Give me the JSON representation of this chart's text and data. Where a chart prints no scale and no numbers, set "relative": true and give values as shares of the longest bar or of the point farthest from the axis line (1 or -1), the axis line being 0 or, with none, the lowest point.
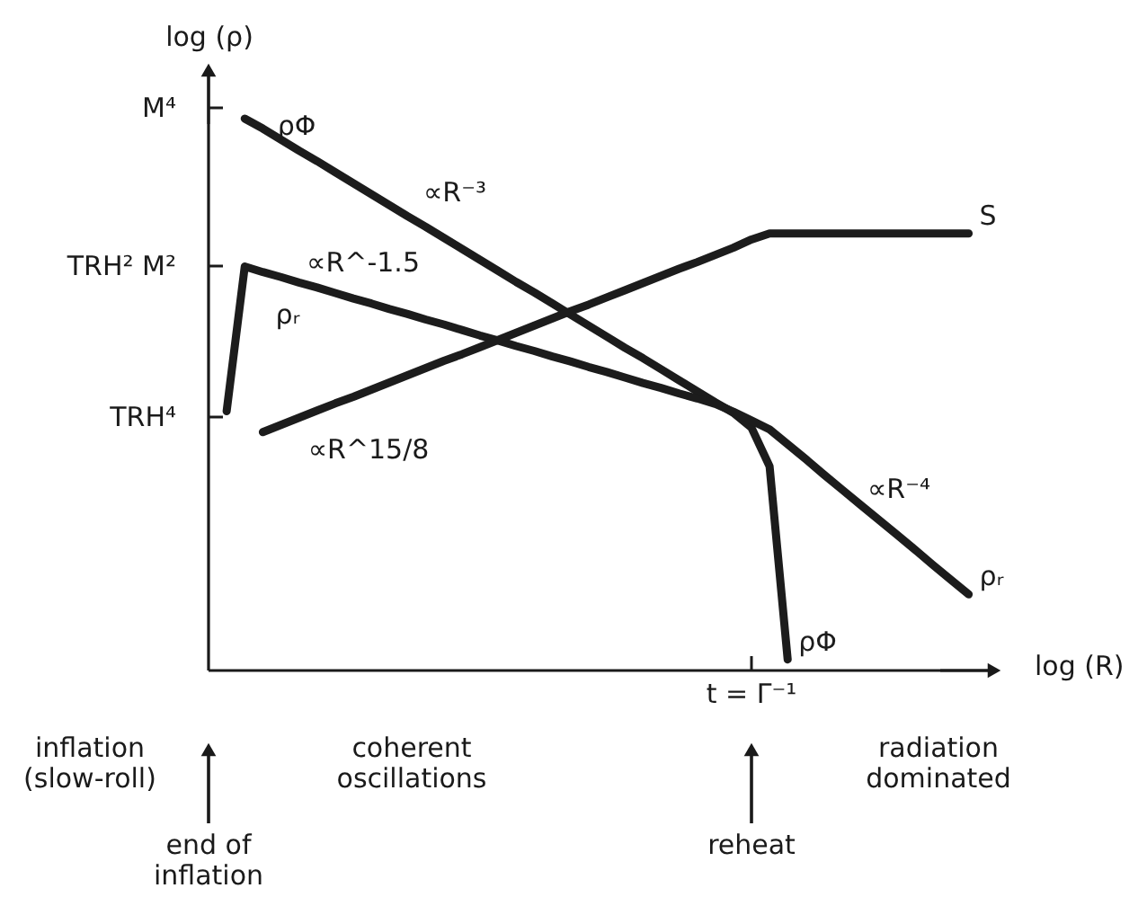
{
  "chart_data": {
    "type": "line",
    "relative": true,
    "xlabel": "log (R)",
    "ylabel": "log (ρ)",
    "categories": [
      null,
      null,
      null,
      null,
      null,
      null,
      null,
      null,
      null,
      null,
      null,
      null,
      null,
      null,
      null,
      null,
      null,
      null,
      null,
      null,
      null,
      null,
      null,
      null,
      null,
      null,
      null,
      null,
      null,
      null,
      null,
      null,
      null,
      null,
      null,
      null,
      null,
      null,
      null,
      null,
      null,
      null
    ],
    "series": [
      {
        "name": "ρΦ",
        "color": "#1c1c1c",
        "values": [
          null,
          1.0,
          0.982,
          0.962,
          0.942,
          0.923,
          0.903,
          0.883,
          0.863,
          0.843,
          0.823,
          0.804,
          0.784,
          0.764,
          0.744,
          0.724,
          0.704,
          0.685,
          0.665,
          0.645,
          0.625,
          0.605,
          0.585,
          0.566,
          0.546,
          0.526,
          0.506,
          0.486,
          0.467,
          0.44,
          0.37,
          0.02,
          null,
          null,
          null,
          null,
          null,
          null,
          null,
          null,
          null,
          null
        ]
      },
      {
        "name": "ρᵣ",
        "color": "#1c1c1c",
        "values": [
          0.47,
          0.732,
          0.722,
          0.713,
          0.703,
          0.694,
          0.684,
          0.674,
          0.665,
          0.655,
          0.646,
          0.636,
          0.627,
          0.617,
          0.607,
          0.598,
          0.588,
          0.579,
          0.569,
          0.56,
          0.55,
          0.541,
          0.531,
          0.521,
          0.512,
          0.502,
          0.493,
          0.483,
          0.469,
          0.453,
          0.437,
          0.41,
          0.383,
          0.355,
          0.328,
          0.301,
          0.274,
          0.247,
          0.22,
          0.192,
          0.165,
          0.138
        ]
      },
      {
        "name": "S",
        "color": "#1c1c1c",
        "values": [
          null,
          null,
          0.432,
          0.445,
          0.458,
          0.471,
          0.484,
          0.496,
          0.509,
          0.522,
          0.535,
          0.548,
          0.561,
          0.573,
          0.586,
          0.599,
          0.612,
          0.625,
          0.638,
          0.651,
          0.663,
          0.676,
          0.689,
          0.702,
          0.715,
          0.728,
          0.74,
          0.753,
          0.766,
          0.781,
          0.792,
          0.792,
          0.792,
          0.792,
          0.792,
          0.792,
          0.792,
          0.792,
          0.792,
          0.792,
          0.792,
          0.792
        ]
      }
    ],
    "annotations": [
      "M⁴",
      "TRH² M²",
      "TRH⁴",
      "ρΦ",
      "∝R⁻³",
      "∝R^-1.5",
      "ρᵣ",
      "∝R^15/8",
      "∝R⁻⁴",
      "t = Γ⁻¹",
      "inflation (slow-roll)",
      "end of inflation",
      "coherent oscillations",
      "reheat",
      "radiation dominated"
    ]
  }
}
